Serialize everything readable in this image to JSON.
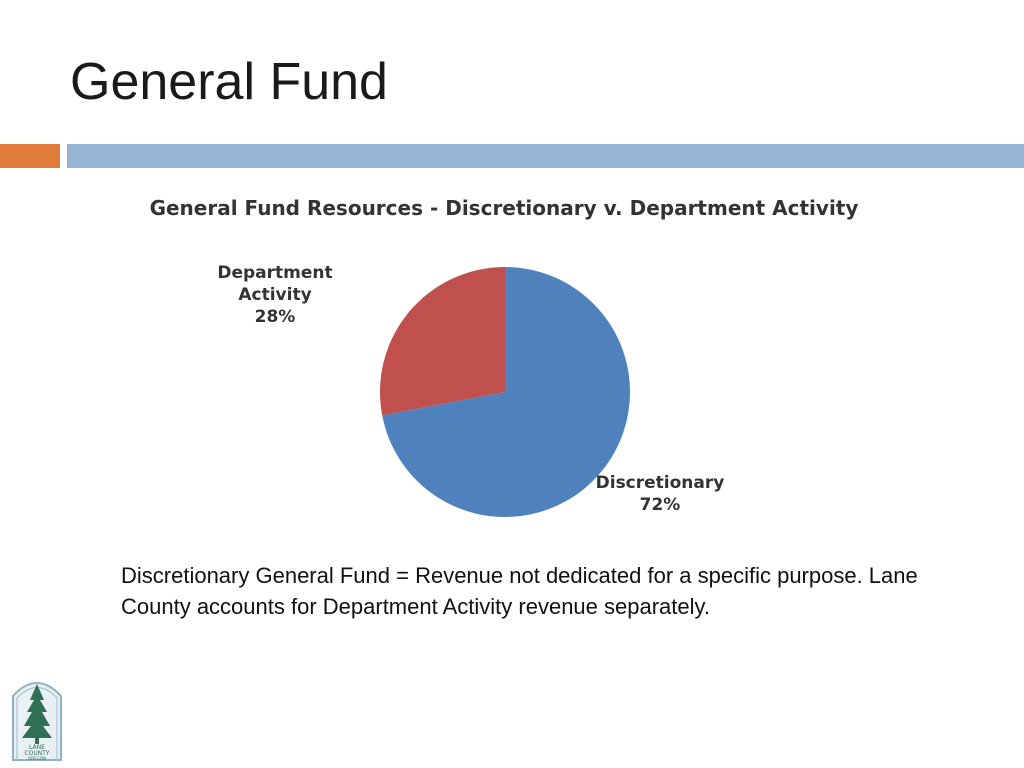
{
  "slide": {
    "title": "General Fund",
    "body_text": "Discretionary General Fund = Revenue not dedicated for a specific purpose. Lane County accounts for Department Activity revenue separately."
  },
  "logo": {
    "line1": "LANE",
    "line2": "COUNTY",
    "line3": "OREGON"
  },
  "colors": {
    "accent_orange": "#e07b39",
    "accent_blue": "#95b4d6",
    "discretionary": "#4f81bd",
    "department": "#c0504d"
  },
  "chart_data": {
    "type": "pie",
    "title": "General Fund Resources - Discretionary v. Department Activity",
    "slices": [
      {
        "label": [
          "Discretionary"
        ],
        "percent_label": "72%",
        "value": 72,
        "color": "#4f81bd"
      },
      {
        "label": [
          "Department",
          "Activity"
        ],
        "percent_label": "28%",
        "value": 28,
        "color": "#c0504d"
      }
    ],
    "start_angle_deg": 0,
    "direction": "clockwise",
    "legend": "none"
  }
}
